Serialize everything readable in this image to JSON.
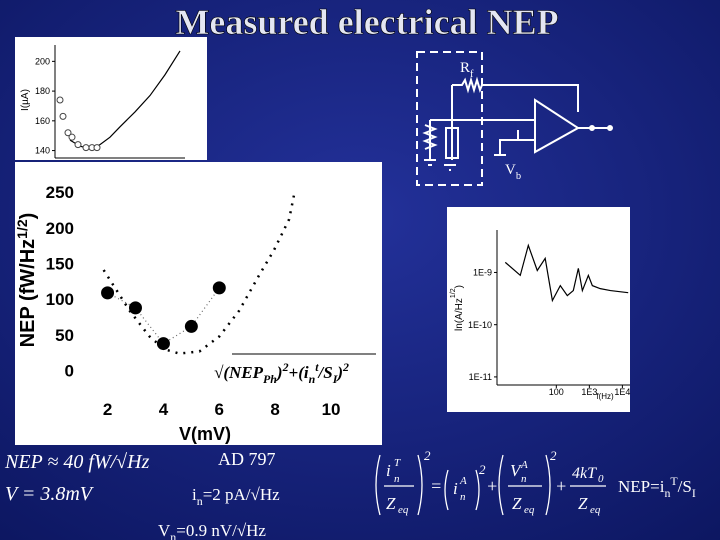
{
  "title": "Measured electrical NEP",
  "circuit": {
    "rf": [
      "R",
      "f"
    ],
    "vb": [
      "V",
      "b"
    ]
  },
  "chart_data": [
    {
      "type": "line",
      "ylabel": "I(µA)",
      "xlim": [
        0,
        130
      ],
      "ylim": [
        135,
        211
      ],
      "yticks": [
        140,
        160,
        180,
        200
      ],
      "axes": true,
      "series": [
        {
          "color": "#000000",
          "line": "solid",
          "x": [
            15,
            25,
            35,
            45,
            55,
            65,
            80,
            95,
            110,
            125
          ],
          "values": [
            147,
            143,
            141,
            144,
            149,
            156,
            166,
            177,
            191,
            207
          ]
        },
        {
          "color": "#444444",
          "line": "none",
          "markers": "open",
          "x": [
            5,
            8,
            13,
            17,
            23,
            31,
            37,
            42
          ],
          "values": [
            174,
            163,
            152,
            149,
            144,
            142,
            142,
            142
          ]
        }
      ]
    },
    {
      "type": "line",
      "ylabel": [
        "NEP (fW/Hz",
        "1/2",
        ")"
      ],
      "xlabel": "V(mV)",
      "xlim": [
        1.3,
        10.5
      ],
      "ylim": [
        -20,
        260
      ],
      "xticks": [
        2,
        4,
        6,
        8,
        10
      ],
      "yticks": [
        0,
        50,
        100,
        150,
        200,
        250
      ],
      "series": [
        {
          "color": "#000000",
          "line": "dashed",
          "x": [
            1.86,
            2.79,
            3.5,
            4.04,
            4.57,
            5.29,
            6,
            6.71,
            7.43,
            7.96,
            8.5,
            8.68
          ],
          "values": [
            141,
            84,
            48,
            30,
            24,
            27,
            48,
            84,
            134,
            169,
            212,
            247
          ]
        },
        {
          "color": "#000000",
          "line": "dotted",
          "markers": "filled",
          "x": [
            2,
            3,
            4,
            5,
            6
          ],
          "values": [
            109,
            88,
            38,
            62,
            116
          ]
        }
      ],
      "formula": [
        "√",
        "(NEP",
        "Ph",
        ")",
        "2",
        "+(i",
        "n",
        "t",
        "/S",
        "I",
        ")",
        "2"
      ]
    },
    {
      "type": "line",
      "ylabel": [
        "ln(A/Hz",
        "1/2",
        ")"
      ],
      "xlabel": "f(Hz)",
      "xscale": "log",
      "yscale": "log",
      "xlim": [
        1.6,
        17000
      ],
      "ylim": [
        7e-12,
        6.5e-09
      ],
      "xticks": [
        100,
        {
          "value": 1000,
          "label": "1E3"
        },
        {
          "value": 10000,
          "label": "1E4"
        }
      ],
      "yticks": [
        {
          "value": 1e-09,
          "label": "1E-9"
        },
        {
          "value": 1e-10,
          "label": "1E-10"
        },
        {
          "value": 1e-11,
          "label": "1E-11"
        }
      ],
      "axes": true,
      "series": [
        {
          "color": "#000000",
          "line": "solid",
          "x": [
            2.85,
            8.1,
            14.2,
            26.5,
            46,
            76,
            132,
            215,
            327,
            464,
            614,
            933,
            1230,
            2140,
            4350,
            15000
          ],
          "values": [
            1.56e-09,
            8.8e-10,
            3.3e-09,
            1.09e-09,
            1.86e-09,
            2.9e-10,
            5.6e-10,
            3.6e-10,
            4.5e-10,
            1.2e-09,
            4.5e-10,
            8.8e-10,
            5.6e-10,
            4.9e-10,
            4.5e-10,
            4.1e-10
          ]
        }
      ]
    }
  ],
  "notes": {
    "nep": "NEP ≈ 40 fW/√Hz",
    "v": "V = 3.8mV",
    "ad": "AD 797",
    "in": [
      "i",
      "n",
      "=2 pA/√Hz"
    ],
    "vn": [
      "V",
      "n",
      "=0.9 nV/√Hz"
    ],
    "equation": [
      "i",
      "T",
      "n",
      "Z",
      "eq",
      "2",
      "=",
      "i",
      "A",
      "n",
      "2",
      "+",
      "V",
      "A",
      "n",
      "Z",
      "eq",
      "2",
      "+",
      "4kT",
      "0",
      "Z",
      "eq"
    ],
    "nep_formula": [
      "NEP=i",
      "n",
      "T",
      "/S",
      "I"
    ]
  }
}
